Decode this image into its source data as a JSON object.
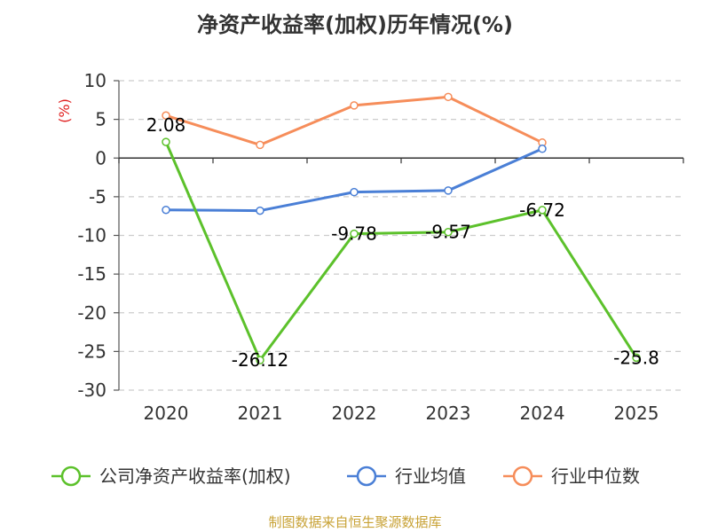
{
  "chart_data": {
    "type": "line",
    "title": "净资产收益率(加权)历年情况(%)",
    "ylabel": "(%)",
    "xlabel": "",
    "categories": [
      "2020",
      "2021",
      "2022",
      "2023",
      "2024",
      "2025"
    ],
    "ylim": [
      -30,
      10
    ],
    "yticks": [
      10,
      5,
      0,
      -5,
      -10,
      -15,
      -20,
      -25,
      -30
    ],
    "grid": true,
    "legend_position": "bottom",
    "series": [
      {
        "name": "公司净资产收益率(加权)",
        "color": "#5cc12b",
        "values": [
          2.08,
          -26.12,
          -9.78,
          -9.57,
          -6.72,
          -25.8
        ],
        "labels": [
          "2.08",
          "-26.12",
          "-9.78",
          "-9.57",
          "-6.72",
          "-25.8"
        ]
      },
      {
        "name": "行业均值",
        "color": "#4a7fd6",
        "values": [
          -6.7,
          -6.8,
          -4.4,
          -4.2,
          1.2,
          null
        ]
      },
      {
        "name": "行业中位数",
        "color": "#f68d5a",
        "values": [
          5.5,
          1.7,
          6.8,
          7.9,
          2.0,
          null
        ]
      }
    ]
  },
  "footer": {
    "source": "制图数据来自恒生聚源数据库"
  }
}
